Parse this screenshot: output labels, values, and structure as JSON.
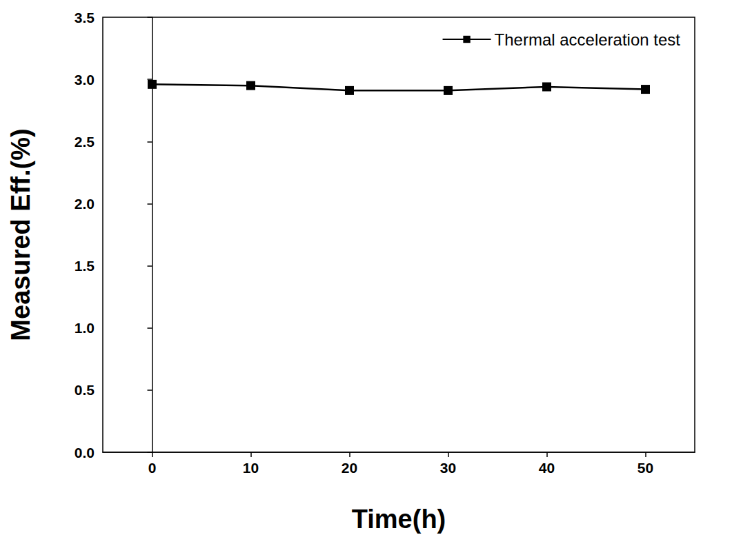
{
  "chart_data": {
    "type": "line",
    "x_label": "Time(h)",
    "y_label": "Measured Eff.(%)",
    "series": [
      {
        "name": "Thermal acceleration test",
        "color": "#000000",
        "marker": "square",
        "line_style": "solid",
        "x": [
          0,
          10,
          20,
          30,
          40,
          50
        ],
        "values": [
          2.96,
          2.95,
          2.91,
          2.91,
          2.94,
          2.92
        ]
      }
    ],
    "xlim": [
      -5,
      55
    ],
    "xticks": [
      0,
      10,
      20,
      30,
      40,
      50
    ],
    "ylim": [
      0,
      3.5
    ],
    "yticks": [
      {
        "value": 0,
        "label": "0.0"
      },
      {
        "value": 0.5,
        "label": "0.5"
      },
      {
        "value": 1,
        "label": "1.0"
      },
      {
        "value": 1.5,
        "label": "1.5"
      },
      {
        "value": 2,
        "label": "2.0"
      },
      {
        "value": 2.5,
        "label": "2.5"
      },
      {
        "value": 3,
        "label": "3.0"
      },
      {
        "value": 3.5,
        "label": "3.5"
      }
    ],
    "grid": false,
    "legend": "upper right"
  }
}
